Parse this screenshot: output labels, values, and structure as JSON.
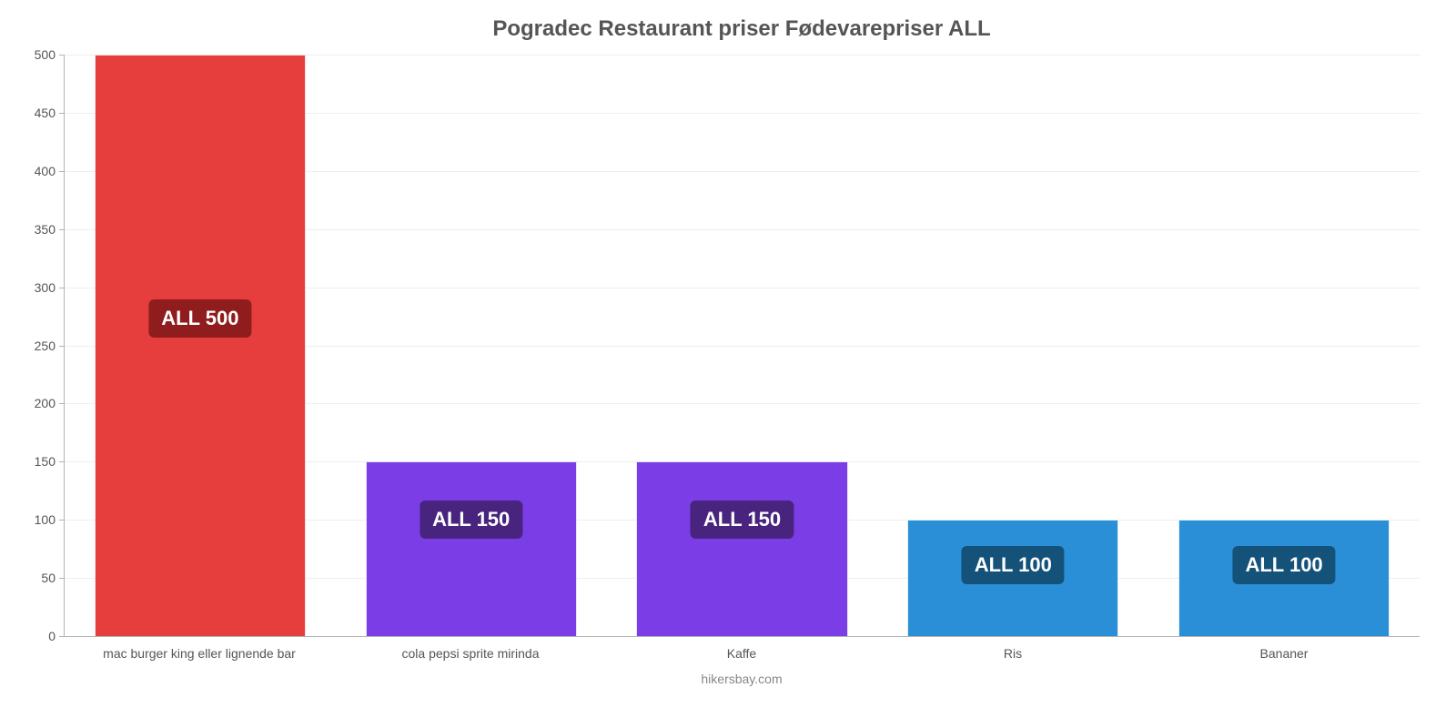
{
  "chart": {
    "type": "bar",
    "title": "Pogradec Restaurant priser Fødevarepriser ALL",
    "title_fontsize": 24,
    "title_color": "#555555",
    "attribution": "hikersbay.com",
    "attribution_color": "#888888",
    "background_color": "#ffffff",
    "grid_color": "#eeeeee",
    "axis_color": "#b3b3b3",
    "axis_label_color": "#555555",
    "axis_label_fontsize": 14,
    "value_label_fontsize": 22,
    "ylim": [
      0,
      500
    ],
    "ytick_step": 50,
    "bar_width": 0.78,
    "categories": [
      "mac burger king eller lignende bar",
      "cola pepsi sprite mirinda",
      "Kaffe",
      "Ris",
      "Bananer"
    ],
    "values": [
      500,
      150,
      150,
      100,
      100
    ],
    "value_labels": [
      "ALL 500",
      "ALL 150",
      "ALL 150",
      "ALL 100",
      "ALL 100"
    ],
    "bar_colors": [
      "#e63d3d",
      "#7b3de6",
      "#7b3de6",
      "#2a8fd6",
      "#2a8fd6"
    ],
    "label_bg_colors": [
      "#8f1d1d",
      "#48247e",
      "#48247e",
      "#14527a",
      "#14527a"
    ]
  }
}
